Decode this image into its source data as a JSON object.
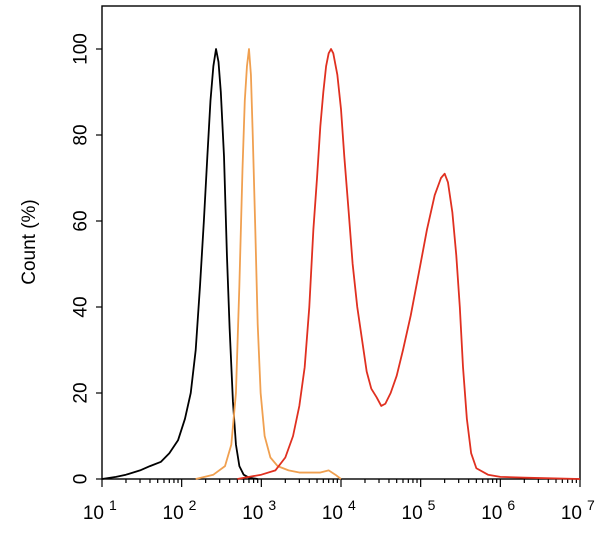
{
  "chart_data": {
    "type": "line",
    "title": "",
    "xlabel": "",
    "ylabel": "Count  (%)",
    "xscale": "log",
    "xlim": [
      10,
      10000000
    ],
    "ylim": [
      0,
      110
    ],
    "grid": false,
    "legend": "none",
    "x_ticks": [
      {
        "base": "10",
        "exp": "1"
      },
      {
        "base": "10",
        "exp": "2"
      },
      {
        "base": "10",
        "exp": "3"
      },
      {
        "base": "10",
        "exp": "4"
      },
      {
        "base": "10",
        "exp": "5"
      },
      {
        "base": "10",
        "exp": "6"
      },
      {
        "base": "10",
        "exp": "7"
      }
    ],
    "y_ticks": [
      "0",
      "20",
      "40",
      "60",
      "80",
      "100"
    ],
    "series": [
      {
        "color": "#000000",
        "points": [
          [
            10,
            0
          ],
          [
            15,
            0.5
          ],
          [
            20,
            1
          ],
          [
            30,
            2
          ],
          [
            40,
            3
          ],
          [
            55,
            4
          ],
          [
            70,
            6
          ],
          [
            90,
            9
          ],
          [
            110,
            14
          ],
          [
            130,
            20
          ],
          [
            150,
            30
          ],
          [
            170,
            45
          ],
          [
            190,
            60
          ],
          [
            210,
            75
          ],
          [
            230,
            88
          ],
          [
            250,
            96
          ],
          [
            270,
            100
          ],
          [
            290,
            97
          ],
          [
            310,
            90
          ],
          [
            340,
            75
          ],
          [
            370,
            52
          ],
          [
            400,
            35
          ],
          [
            440,
            18
          ],
          [
            480,
            8
          ],
          [
            530,
            3
          ],
          [
            600,
            1
          ],
          [
            700,
            0.3
          ],
          [
            900,
            0
          ]
        ]
      },
      {
        "color": "#f0a050",
        "points": [
          [
            150,
            0
          ],
          [
            250,
            1
          ],
          [
            350,
            3
          ],
          [
            420,
            8
          ],
          [
            480,
            20
          ],
          [
            530,
            45
          ],
          [
            580,
            72
          ],
          [
            620,
            88
          ],
          [
            660,
            96
          ],
          [
            700,
            100
          ],
          [
            740,
            94
          ],
          [
            780,
            80
          ],
          [
            840,
            58
          ],
          [
            900,
            36
          ],
          [
            980,
            20
          ],
          [
            1100,
            10
          ],
          [
            1300,
            5
          ],
          [
            1600,
            3
          ],
          [
            2200,
            2
          ],
          [
            3000,
            1.5
          ],
          [
            4000,
            1.5
          ],
          [
            5500,
            1.5
          ],
          [
            7000,
            2
          ],
          [
            8500,
            1
          ],
          [
            10000,
            0
          ]
        ]
      },
      {
        "color": "#e03020",
        "points": [
          [
            500,
            0
          ],
          [
            1000,
            1
          ],
          [
            1500,
            2
          ],
          [
            2000,
            5
          ],
          [
            2500,
            10
          ],
          [
            3000,
            17
          ],
          [
            3500,
            26
          ],
          [
            4000,
            40
          ],
          [
            4500,
            58
          ],
          [
            5000,
            70
          ],
          [
            5500,
            82
          ],
          [
            6000,
            90
          ],
          [
            6500,
            96
          ],
          [
            7000,
            99
          ],
          [
            7500,
            100
          ],
          [
            8000,
            99
          ],
          [
            9000,
            94
          ],
          [
            10000,
            86
          ],
          [
            11000,
            75
          ],
          [
            12500,
            62
          ],
          [
            14000,
            50
          ],
          [
            16000,
            40
          ],
          [
            18500,
            32
          ],
          [
            21000,
            25
          ],
          [
            24000,
            21
          ],
          [
            28000,
            19
          ],
          [
            32000,
            17
          ],
          [
            36000,
            17.5
          ],
          [
            42000,
            20
          ],
          [
            50000,
            24
          ],
          [
            60000,
            30
          ],
          [
            75000,
            38
          ],
          [
            95000,
            48
          ],
          [
            120000,
            58
          ],
          [
            150000,
            66
          ],
          [
            180000,
            70
          ],
          [
            200000,
            71
          ],
          [
            220000,
            69
          ],
          [
            250000,
            62
          ],
          [
            280000,
            52
          ],
          [
            310000,
            40
          ],
          [
            340000,
            26
          ],
          [
            380000,
            14
          ],
          [
            430000,
            6
          ],
          [
            500000,
            2.5
          ],
          [
            700000,
            1
          ],
          [
            1000000,
            0.5
          ],
          [
            2000000,
            0.3
          ],
          [
            10000000,
            0
          ]
        ]
      }
    ]
  }
}
